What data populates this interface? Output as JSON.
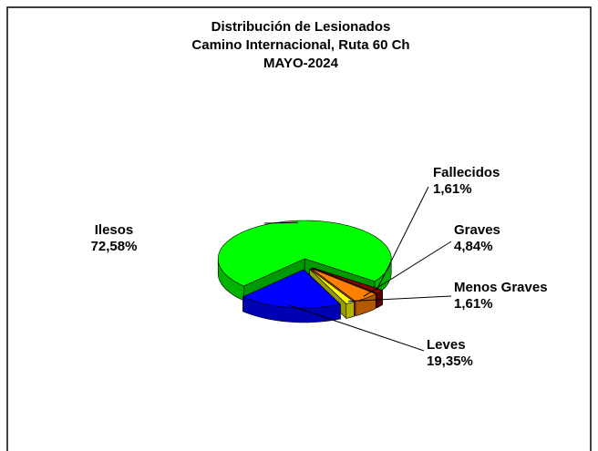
{
  "chart_data": {
    "type": "pie3d",
    "title": "Distribución de Lesionados",
    "subtitle": "Camino Internacional, Ruta 60 Ch",
    "period": "MAYO-2024",
    "categories": [
      "Fallecidos",
      "Graves",
      "Menos Graves",
      "Leves",
      "Ilesos"
    ],
    "values": [
      1.61,
      4.84,
      1.61,
      19.35,
      72.58
    ],
    "value_labels": [
      "1,61%",
      "4,84%",
      "1,61%",
      "19,35%",
      "72,58%"
    ],
    "colors": [
      "#8b0000",
      "#ff8000",
      "#ffff00",
      "#0000ff",
      "#00ff00"
    ]
  }
}
